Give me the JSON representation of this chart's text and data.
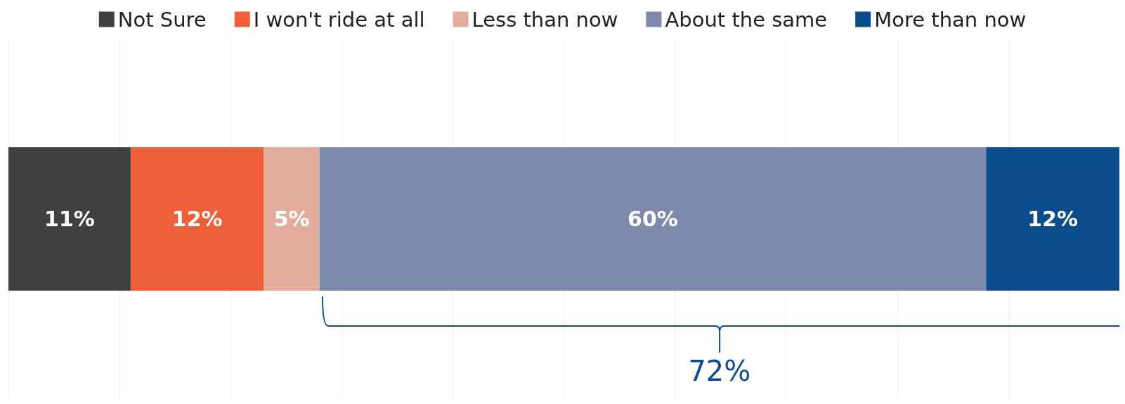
{
  "chart_data": {
    "type": "bar",
    "orientation": "horizontal",
    "stacked": true,
    "categories": [
      null
    ],
    "series": [
      {
        "name": "Not Sure",
        "color": "#404040",
        "values": [
          11
        ],
        "value_labels": [
          "11%"
        ]
      },
      {
        "name": "I won't ride at all",
        "color": "#ed603a",
        "values": [
          12
        ],
        "value_labels": [
          "12%"
        ]
      },
      {
        "name": "Less than now",
        "color": "#e2ad9c",
        "values": [
          5
        ],
        "value_labels": [
          "5%"
        ]
      },
      {
        "name": "About the same",
        "color": "#7d8aac",
        "values": [
          60
        ],
        "value_labels": [
          "60%"
        ]
      },
      {
        "name": "More than now",
        "color": "#0b4c8c",
        "values": [
          12
        ],
        "value_labels": [
          "12%"
        ]
      }
    ],
    "grid": "x",
    "legend": "top",
    "annotations": [
      "72%"
    ]
  }
}
